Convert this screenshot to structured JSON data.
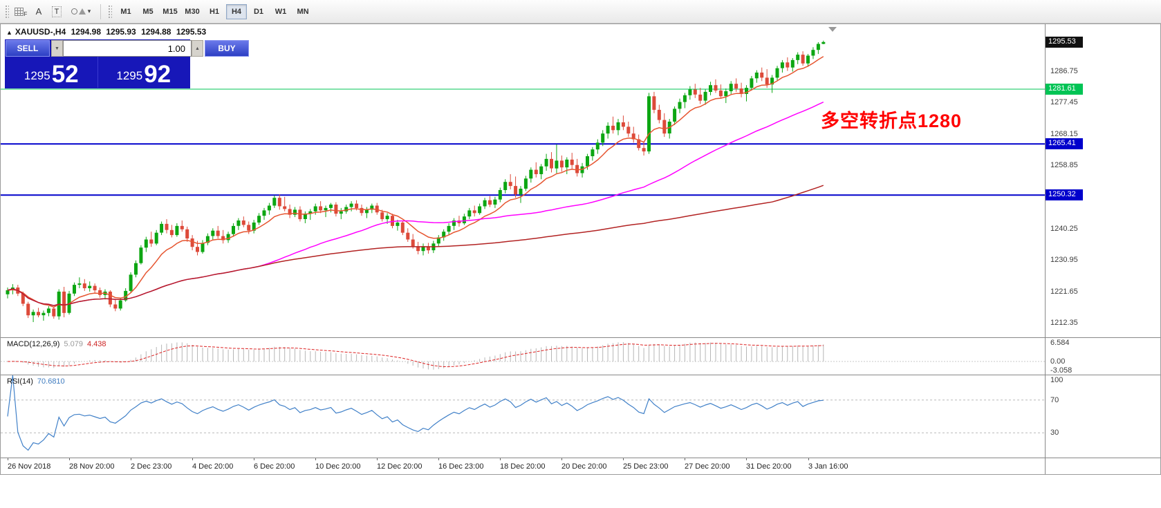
{
  "toolbar": {
    "tools": [
      {
        "name": "chart-grid-tool",
        "label": "F"
      },
      {
        "name": "text-a-tool",
        "label": "A"
      },
      {
        "name": "text-label-tool",
        "label": "T"
      },
      {
        "name": "shapes-tool",
        "label": ""
      }
    ],
    "timeframes": [
      "M1",
      "M5",
      "M15",
      "M30",
      "H1",
      "H4",
      "D1",
      "W1",
      "MN"
    ],
    "active_timeframe": "H4"
  },
  "window": {
    "symbol_header": {
      "icon": "▲",
      "symbol": "XAUUSD-,H4",
      "open": "1294.98",
      "high": "1295.93",
      "low": "1294.88",
      "close": "1295.53"
    }
  },
  "trade_panel": {
    "sell_label": "SELL",
    "buy_label": "BUY",
    "volume": "1.00",
    "bid": {
      "main": "1295",
      "big": "52"
    },
    "ask": {
      "main": "1295",
      "big": "92"
    }
  },
  "indicators": {
    "macd": {
      "title": "MACD(12,26,9)",
      "value_main": "5.079",
      "value_signal": "4.438",
      "y_ticks": [
        "6.584",
        "0.00",
        "-3.058"
      ]
    },
    "rsi": {
      "title": "RSI(14)",
      "value": "70.6810",
      "y_ticks": [
        "100",
        "70",
        "30"
      ]
    }
  },
  "price_axis": {
    "ticks": [
      "1286.75",
      "1277.45",
      "1268.15",
      "1258.85",
      "1240.25",
      "1230.95",
      "1221.65",
      "1212.35"
    ],
    "current": {
      "text": "1295.53",
      "bg": "#111111"
    },
    "line_labels": [
      {
        "text": "1281.61",
        "bg": "#00c455"
      },
      {
        "text": "1265.41",
        "bg": "#0000cc"
      },
      {
        "text": "1250.32",
        "bg": "#0000cc"
      }
    ]
  },
  "chart_data": {
    "type": "candlestick",
    "symbol": "XAUUSD-",
    "timeframe": "H4",
    "title": "XAUUSD-,H4 1294.98 1295.93 1294.88 1295.53",
    "y_range": [
      1208.3,
      1300.8
    ],
    "grid": false,
    "x_labels": [
      "26 Nov 2018",
      "28 Nov 20:00",
      "2 Dec 23:00",
      "4 Dec 20:00",
      "6 Dec 20:00",
      "10 Dec 20:00",
      "12 Dec 20:00",
      "16 Dec 23:00",
      "18 Dec 20:00",
      "20 Dec 20:00",
      "25 Dec 23:00",
      "27 Dec 20:00",
      "31 Dec 20:00",
      "3 Jan 16:00"
    ],
    "candles_per_label": 12,
    "colors": {
      "up": "#0ca612",
      "down": "#dd4a3a"
    },
    "hlines": [
      {
        "price": 1281.61,
        "color": "#00c455",
        "width": 1
      },
      {
        "price": 1265.41,
        "color": "#0000cc",
        "width": 2
      },
      {
        "price": 1250.32,
        "color": "#0000cc",
        "width": 2
      }
    ],
    "moving_averages": [
      {
        "period": 10,
        "method": "ema",
        "color": "#e65530"
      },
      {
        "period": 50,
        "method": "sma",
        "color": "#ff00ff"
      },
      {
        "period": 150,
        "method": "sma",
        "color": "#b22222"
      }
    ],
    "annotation": {
      "text": "多空转折点1280",
      "color": "#ff0000"
    },
    "macd": {
      "fast": 12,
      "slow": 26,
      "signal": 9
    },
    "rsi": {
      "period": 14,
      "levels": [
        70,
        30
      ]
    },
    "candles": [
      [
        1221.0,
        1223.0,
        1219.8,
        1222.2
      ],
      [
        1222.2,
        1224.0,
        1221.0,
        1223.0
      ],
      [
        1223.0,
        1223.8,
        1220.5,
        1221.2
      ],
      [
        1221.2,
        1221.8,
        1217.5,
        1218.2
      ],
      [
        1218.2,
        1218.8,
        1214.0,
        1214.8
      ],
      [
        1214.8,
        1216.5,
        1212.8,
        1215.8
      ],
      [
        1215.8,
        1217.0,
        1214.2,
        1214.8
      ],
      [
        1214.8,
        1216.2,
        1213.2,
        1215.5
      ],
      [
        1215.5,
        1217.5,
        1214.5,
        1216.8
      ],
      [
        1216.8,
        1217.2,
        1213.8,
        1214.5
      ],
      [
        1214.5,
        1222.5,
        1213.5,
        1221.8
      ],
      [
        1221.8,
        1223.2,
        1214.2,
        1215.5
      ],
      [
        1215.5,
        1222.0,
        1215.0,
        1221.2
      ],
      [
        1221.2,
        1224.5,
        1220.5,
        1223.8
      ],
      [
        1223.8,
        1226.0,
        1222.8,
        1224.2
      ],
      [
        1224.2,
        1225.5,
        1222.0,
        1222.8
      ],
      [
        1222.8,
        1224.8,
        1221.8,
        1223.5
      ],
      [
        1223.5,
        1224.2,
        1221.5,
        1222.2
      ],
      [
        1222.2,
        1223.0,
        1220.0,
        1220.8
      ],
      [
        1220.8,
        1222.5,
        1219.5,
        1221.8
      ],
      [
        1221.8,
        1222.2,
        1217.2,
        1218.0
      ],
      [
        1218.0,
        1219.5,
        1216.0,
        1216.8
      ],
      [
        1216.8,
        1220.0,
        1216.2,
        1219.2
      ],
      [
        1219.2,
        1222.8,
        1218.8,
        1222.0
      ],
      [
        1222.0,
        1227.5,
        1221.5,
        1226.8
      ],
      [
        1226.8,
        1231.0,
        1226.0,
        1230.2
      ],
      [
        1230.2,
        1235.5,
        1229.8,
        1234.8
      ],
      [
        1234.8,
        1238.0,
        1233.5,
        1237.2
      ],
      [
        1237.2,
        1239.5,
        1235.0,
        1236.0
      ],
      [
        1236.0,
        1240.0,
        1235.5,
        1239.2
      ],
      [
        1239.2,
        1242.5,
        1238.5,
        1241.8
      ],
      [
        1241.8,
        1243.2,
        1239.0,
        1240.0
      ],
      [
        1240.0,
        1241.5,
        1237.8,
        1238.5
      ],
      [
        1238.5,
        1242.0,
        1238.0,
        1241.2
      ],
      [
        1241.2,
        1242.8,
        1239.5,
        1240.2
      ],
      [
        1240.2,
        1241.0,
        1236.5,
        1237.5
      ],
      [
        1237.5,
        1238.5,
        1234.0,
        1235.0
      ],
      [
        1235.0,
        1236.8,
        1232.5,
        1233.5
      ],
      [
        1233.5,
        1237.0,
        1233.0,
        1236.2
      ],
      [
        1236.2,
        1239.0,
        1235.5,
        1238.2
      ],
      [
        1238.2,
        1240.5,
        1237.0,
        1239.8
      ],
      [
        1239.8,
        1241.2,
        1237.5,
        1238.2
      ],
      [
        1238.2,
        1240.0,
        1236.0,
        1237.0
      ],
      [
        1237.0,
        1239.5,
        1236.2,
        1238.8
      ],
      [
        1238.8,
        1242.0,
        1238.0,
        1241.2
      ],
      [
        1241.2,
        1243.5,
        1240.0,
        1242.8
      ],
      [
        1242.8,
        1244.0,
        1240.8,
        1241.5
      ],
      [
        1241.5,
        1242.5,
        1238.8,
        1239.8
      ],
      [
        1239.8,
        1243.0,
        1239.0,
        1242.2
      ],
      [
        1242.2,
        1245.0,
        1241.5,
        1244.2
      ],
      [
        1244.2,
        1246.5,
        1243.0,
        1245.8
      ],
      [
        1245.8,
        1248.0,
        1244.5,
        1247.2
      ],
      [
        1247.2,
        1250.2,
        1246.5,
        1249.5
      ],
      [
        1249.5,
        1250.5,
        1246.0,
        1247.0
      ],
      [
        1247.0,
        1249.8,
        1245.5,
        1246.2
      ],
      [
        1246.2,
        1247.5,
        1243.5,
        1244.5
      ],
      [
        1244.5,
        1246.8,
        1243.8,
        1246.0
      ],
      [
        1246.0,
        1247.0,
        1242.5,
        1243.2
      ],
      [
        1243.2,
        1245.5,
        1242.0,
        1244.8
      ],
      [
        1244.8,
        1246.2,
        1243.0,
        1245.5
      ],
      [
        1245.5,
        1247.8,
        1244.5,
        1247.0
      ],
      [
        1247.0,
        1248.5,
        1245.0,
        1245.8
      ],
      [
        1245.8,
        1247.2,
        1243.8,
        1246.5
      ],
      [
        1246.5,
        1248.0,
        1245.2,
        1247.5
      ],
      [
        1247.5,
        1248.2,
        1244.0,
        1244.8
      ],
      [
        1244.8,
        1246.5,
        1243.2,
        1245.5
      ],
      [
        1245.5,
        1247.5,
        1244.8,
        1246.8
      ],
      [
        1246.8,
        1248.5,
        1245.5,
        1247.8
      ],
      [
        1247.8,
        1248.8,
        1245.8,
        1246.5
      ],
      [
        1246.5,
        1247.5,
        1244.2,
        1245.0
      ],
      [
        1245.0,
        1246.8,
        1243.5,
        1246.0
      ],
      [
        1246.0,
        1247.8,
        1245.0,
        1247.2
      ],
      [
        1247.2,
        1248.0,
        1244.5,
        1245.2
      ],
      [
        1245.2,
        1246.0,
        1242.5,
        1243.2
      ],
      [
        1243.2,
        1245.0,
        1241.8,
        1244.2
      ],
      [
        1244.2,
        1244.8,
        1240.5,
        1241.2
      ],
      [
        1241.2,
        1243.0,
        1239.8,
        1242.2
      ],
      [
        1242.2,
        1242.8,
        1238.5,
        1239.2
      ],
      [
        1239.2,
        1240.5,
        1236.5,
        1237.2
      ],
      [
        1237.2,
        1238.8,
        1234.5,
        1235.2
      ],
      [
        1235.2,
        1236.5,
        1232.8,
        1233.8
      ],
      [
        1233.8,
        1236.0,
        1232.5,
        1235.2
      ],
      [
        1235.2,
        1236.2,
        1233.0,
        1234.0
      ],
      [
        1234.0,
        1236.8,
        1233.2,
        1236.0
      ],
      [
        1236.0,
        1238.5,
        1235.0,
        1237.8
      ],
      [
        1237.8,
        1240.2,
        1236.8,
        1239.5
      ],
      [
        1239.5,
        1242.0,
        1238.5,
        1241.2
      ],
      [
        1241.2,
        1243.5,
        1240.0,
        1242.8
      ],
      [
        1242.8,
        1244.2,
        1241.0,
        1242.0
      ],
      [
        1242.0,
        1244.8,
        1241.5,
        1244.0
      ],
      [
        1244.0,
        1246.5,
        1243.2,
        1245.8
      ],
      [
        1245.8,
        1247.2,
        1244.0,
        1245.0
      ],
      [
        1245.0,
        1247.8,
        1244.5,
        1247.0
      ],
      [
        1247.0,
        1249.5,
        1246.2,
        1248.8
      ],
      [
        1248.8,
        1250.0,
        1246.8,
        1247.5
      ],
      [
        1247.5,
        1249.8,
        1246.5,
        1249.0
      ],
      [
        1249.0,
        1252.5,
        1248.2,
        1251.8
      ],
      [
        1251.8,
        1255.0,
        1250.8,
        1254.2
      ],
      [
        1254.2,
        1256.5,
        1252.0,
        1253.0
      ],
      [
        1253.0,
        1255.8,
        1249.5,
        1250.5
      ],
      [
        1250.5,
        1253.0,
        1248.0,
        1252.2
      ],
      [
        1252.2,
        1256.0,
        1251.5,
        1255.2
      ],
      [
        1255.2,
        1258.5,
        1254.0,
        1257.8
      ],
      [
        1257.8,
        1260.0,
        1255.5,
        1256.5
      ],
      [
        1256.5,
        1259.5,
        1255.0,
        1258.8
      ],
      [
        1258.8,
        1262.5,
        1257.5,
        1261.0
      ],
      [
        1261.0,
        1263.0,
        1257.0,
        1258.2
      ],
      [
        1258.2,
        1265.3,
        1256.8,
        1260.5
      ],
      [
        1260.5,
        1262.0,
        1257.2,
        1258.5
      ],
      [
        1258.5,
        1261.5,
        1256.5,
        1260.8
      ],
      [
        1260.8,
        1262.8,
        1258.0,
        1259.2
      ],
      [
        1259.2,
        1261.0,
        1255.8,
        1256.8
      ],
      [
        1256.8,
        1259.8,
        1255.5,
        1258.8
      ],
      [
        1258.8,
        1262.5,
        1257.8,
        1261.8
      ],
      [
        1261.8,
        1264.5,
        1260.5,
        1263.8
      ],
      [
        1263.8,
        1266.8,
        1262.5,
        1265.8
      ],
      [
        1265.8,
        1269.5,
        1264.8,
        1268.5
      ],
      [
        1268.5,
        1271.8,
        1267.0,
        1270.8
      ],
      [
        1270.8,
        1273.5,
        1268.5,
        1269.5
      ],
      [
        1269.5,
        1272.8,
        1268.0,
        1271.8
      ],
      [
        1271.8,
        1273.8,
        1269.5,
        1270.5
      ],
      [
        1270.5,
        1272.0,
        1267.5,
        1268.5
      ],
      [
        1268.5,
        1270.5,
        1265.8,
        1266.8
      ],
      [
        1266.8,
        1268.2,
        1263.5,
        1264.2
      ],
      [
        1264.2,
        1266.0,
        1262.0,
        1263.2
      ],
      [
        1263.2,
        1280.5,
        1262.5,
        1279.5
      ],
      [
        1279.5,
        1280.8,
        1274.5,
        1275.5
      ],
      [
        1275.5,
        1277.0,
        1271.5,
        1272.5
      ],
      [
        1272.5,
        1274.5,
        1267.5,
        1268.5
      ],
      [
        1268.5,
        1272.8,
        1267.0,
        1272.0
      ],
      [
        1272.0,
        1276.5,
        1271.0,
        1275.8
      ],
      [
        1275.8,
        1278.8,
        1274.5,
        1277.8
      ],
      [
        1277.8,
        1280.5,
        1276.0,
        1279.8
      ],
      [
        1279.8,
        1282.5,
        1278.5,
        1281.5
      ],
      [
        1281.5,
        1283.2,
        1279.0,
        1280.0
      ],
      [
        1280.0,
        1282.0,
        1277.2,
        1278.2
      ],
      [
        1278.2,
        1281.5,
        1277.0,
        1280.8
      ],
      [
        1280.8,
        1283.8,
        1279.8,
        1282.8
      ],
      [
        1282.8,
        1284.5,
        1280.5,
        1281.2
      ],
      [
        1281.2,
        1283.0,
        1278.8,
        1279.5
      ],
      [
        1279.5,
        1281.8,
        1277.5,
        1281.0
      ],
      [
        1281.0,
        1284.0,
        1280.2,
        1283.2
      ],
      [
        1283.2,
        1284.8,
        1280.8,
        1281.8
      ],
      [
        1281.8,
        1283.5,
        1279.2,
        1280.2
      ],
      [
        1280.2,
        1282.8,
        1278.0,
        1282.0
      ],
      [
        1282.0,
        1285.5,
        1281.2,
        1284.8
      ],
      [
        1284.8,
        1287.2,
        1283.5,
        1286.5
      ],
      [
        1286.5,
        1288.0,
        1284.0,
        1285.0
      ],
      [
        1285.0,
        1287.5,
        1282.0,
        1283.0
      ],
      [
        1283.0,
        1285.8,
        1280.5,
        1285.0
      ],
      [
        1285.0,
        1288.5,
        1284.2,
        1287.8
      ],
      [
        1287.8,
        1290.2,
        1286.5,
        1289.5
      ],
      [
        1289.5,
        1291.0,
        1287.0,
        1288.0
      ],
      [
        1288.0,
        1290.8,
        1286.8,
        1290.2
      ],
      [
        1290.2,
        1292.5,
        1289.0,
        1291.8
      ],
      [
        1291.8,
        1292.8,
        1288.5,
        1289.2
      ],
      [
        1289.2,
        1292.0,
        1288.2,
        1291.5
      ],
      [
        1291.5,
        1294.0,
        1290.5,
        1293.2
      ],
      [
        1293.2,
        1295.5,
        1292.0,
        1294.98
      ],
      [
        1294.98,
        1295.93,
        1294.88,
        1295.53
      ]
    ]
  }
}
